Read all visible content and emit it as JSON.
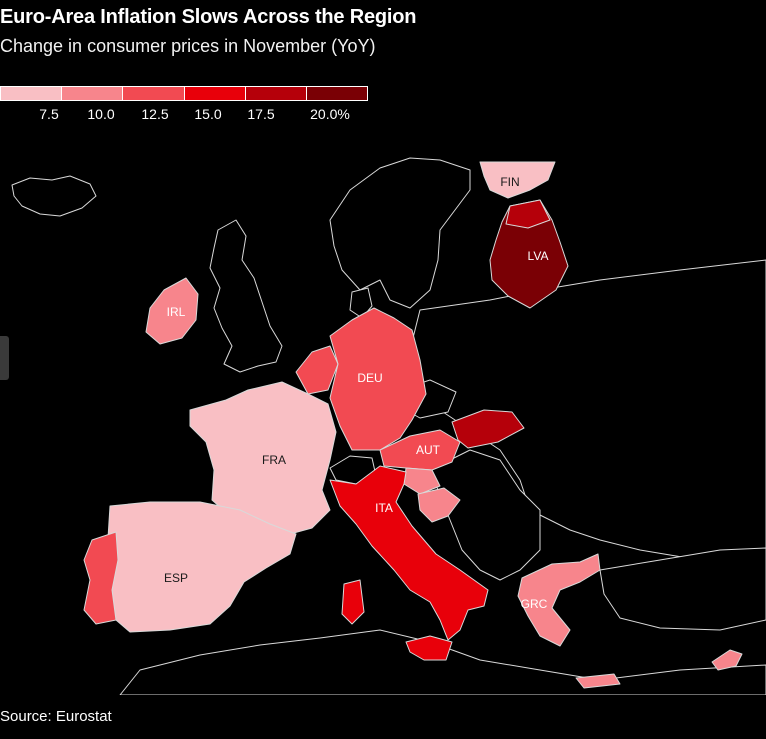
{
  "title": "Euro-Area Inflation Slows Across the Region",
  "subtitle": "Change in consumer prices in November (YoY)",
  "legend": {
    "labels": [
      "7.5",
      "10.0",
      "12.5",
      "15.0",
      "17.5",
      "20.0%"
    ],
    "colors": [
      "#f9bfc4",
      "#f7858c",
      "#f24a52",
      "#e8000a",
      "#b5000a",
      "#7a0005"
    ]
  },
  "countries": {
    "FIN": "FIN",
    "LVA": "LVA",
    "IRL": "IRL",
    "DEU": "DEU",
    "FRA": "FRA",
    "AUT": "AUT",
    "ITA": "ITA",
    "ESP": "ESP",
    "GRC": "GRC"
  },
  "source": "Source: Eurostat",
  "map_colors": {
    "land_dark": "#000000",
    "border": "#d9d9d9"
  }
}
